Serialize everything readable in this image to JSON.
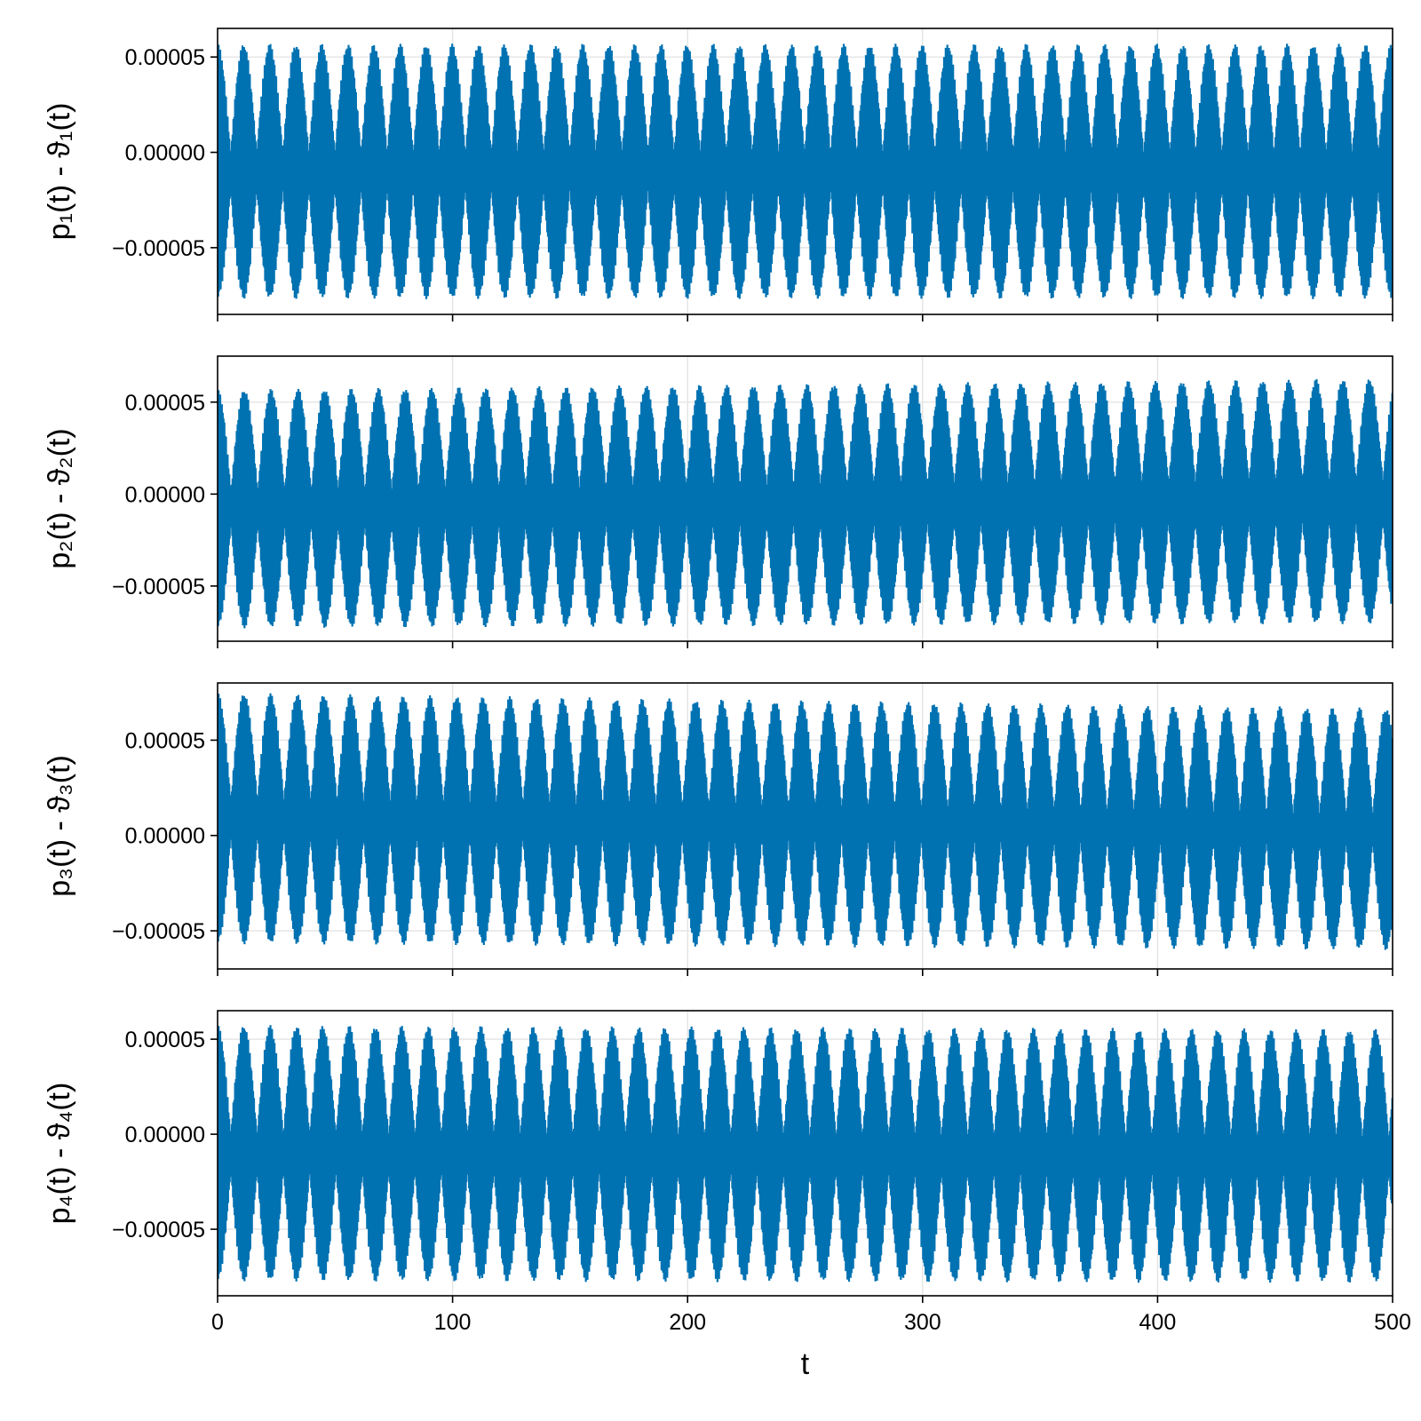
{
  "chart_data": [
    {
      "type": "line",
      "ylabel": "p₁(t) - ϑ₁(t)",
      "xlabel": "",
      "xlim": [
        0,
        500
      ],
      "ylim": [
        -8.5e-05,
        6.5e-05
      ],
      "xticks": [
        0,
        100,
        200,
        300,
        400,
        500
      ],
      "xtick_labels": [
        "",
        "",
        "",
        "",
        "",
        ""
      ],
      "yticks": [
        5e-05,
        0.0,
        -5e-05
      ],
      "ytick_labels": [
        "0.00005",
        "0.00000",
        "−0.00005"
      ],
      "grid": true,
      "color": "#0072b2",
      "signal": {
        "t_start": 0,
        "t_end": 500,
        "envelope_period": 11.1,
        "fast_period": 0.35,
        "upper_peak": 5.7e-05,
        "lower_peak": -7.7e-05,
        "center": -1e-05,
        "trend_per_500": 0.0
      },
      "series": [
        {
          "x": [
            0,
            5.55,
            11.1,
            16.65,
            500
          ],
          "y": [
            5.7e-05,
            -7.7e-05,
            5.7e-05,
            -7.7e-05,
            3e-05
          ]
        }
      ]
    },
    {
      "type": "line",
      "ylabel": "p₂(t) - ϑ₂(t)",
      "xlabel": "",
      "xlim": [
        0,
        500
      ],
      "ylim": [
        -8e-05,
        7.5e-05
      ],
      "xticks": [
        0,
        100,
        200,
        300,
        400,
        500
      ],
      "xtick_labels": [
        "",
        "",
        "",
        "",
        "",
        ""
      ],
      "yticks": [
        5e-05,
        0.0,
        -5e-05
      ],
      "ytick_labels": [
        "0.00005",
        "0.00000",
        "−0.00005"
      ],
      "grid": true,
      "color": "#0072b2",
      "signal": {
        "t_start": 0,
        "t_end": 500,
        "envelope_period": 11.4,
        "fast_period": 0.35,
        "upper_peak": 5.7e-05,
        "lower_peak": -7.3e-05,
        "center": -8e-06,
        "trend_per_500": 6e-06
      },
      "series": [
        {
          "x": [
            0,
            5.7,
            11.4,
            17.1,
            500
          ],
          "y": [
            5.7e-05,
            -7.3e-05,
            5.7e-05,
            -7.3e-05,
            6.5e-05
          ]
        }
      ]
    },
    {
      "type": "line",
      "ylabel": "p₃(t) - ϑ₃(t)",
      "xlabel": "",
      "xlim": [
        0,
        500
      ],
      "ylim": [
        -7e-05,
        8e-05
      ],
      "xticks": [
        0,
        100,
        200,
        300,
        400,
        500
      ],
      "xtick_labels": [
        "",
        "",
        "",
        "",
        "",
        ""
      ],
      "yticks": [
        5e-05,
        0.0,
        -5e-05
      ],
      "ytick_labels": [
        "0.00005",
        "0.00000",
        "−0.00005"
      ],
      "grid": true,
      "color": "#0072b2",
      "signal": {
        "t_start": 0,
        "t_end": 500,
        "envelope_period": 11.3,
        "fast_period": 0.35,
        "upper_peak": 7.5e-05,
        "lower_peak": -5.7e-05,
        "center": 9e-06,
        "trend_per_500": -8e-06
      },
      "series": [
        {
          "x": [
            0,
            5.65,
            11.3,
            16.95,
            500
          ],
          "y": [
            7.5e-05,
            -5.7e-05,
            7.5e-05,
            -5.7e-05,
            -6.3e-05
          ]
        }
      ]
    },
    {
      "type": "line",
      "ylabel": "p₄(t) - ϑ₄(t)",
      "xlabel": "t",
      "xlim": [
        0,
        500
      ],
      "ylim": [
        -8.5e-05,
        6.5e-05
      ],
      "xticks": [
        0,
        100,
        200,
        300,
        400,
        500
      ],
      "xtick_labels": [
        "0",
        "100",
        "200",
        "300",
        "400",
        "500"
      ],
      "yticks": [
        5e-05,
        0.0,
        -5e-05
      ],
      "ytick_labels": [
        "0.00005",
        "0.00000",
        "−0.00005"
      ],
      "grid": true,
      "color": "#0072b2",
      "signal": {
        "t_start": 0,
        "t_end": 500,
        "envelope_period": 11.2,
        "fast_period": 0.35,
        "upper_peak": 5.8e-05,
        "lower_peak": -7.7e-05,
        "center": -1e-05,
        "trend_per_500": -2e-06
      },
      "series": [
        {
          "x": [
            0,
            5.6,
            11.2,
            16.8,
            500
          ],
          "y": [
            5.8e-05,
            -7.7e-05,
            5.8e-05,
            -7.7e-05,
            -4e-05
          ]
        }
      ]
    }
  ]
}
